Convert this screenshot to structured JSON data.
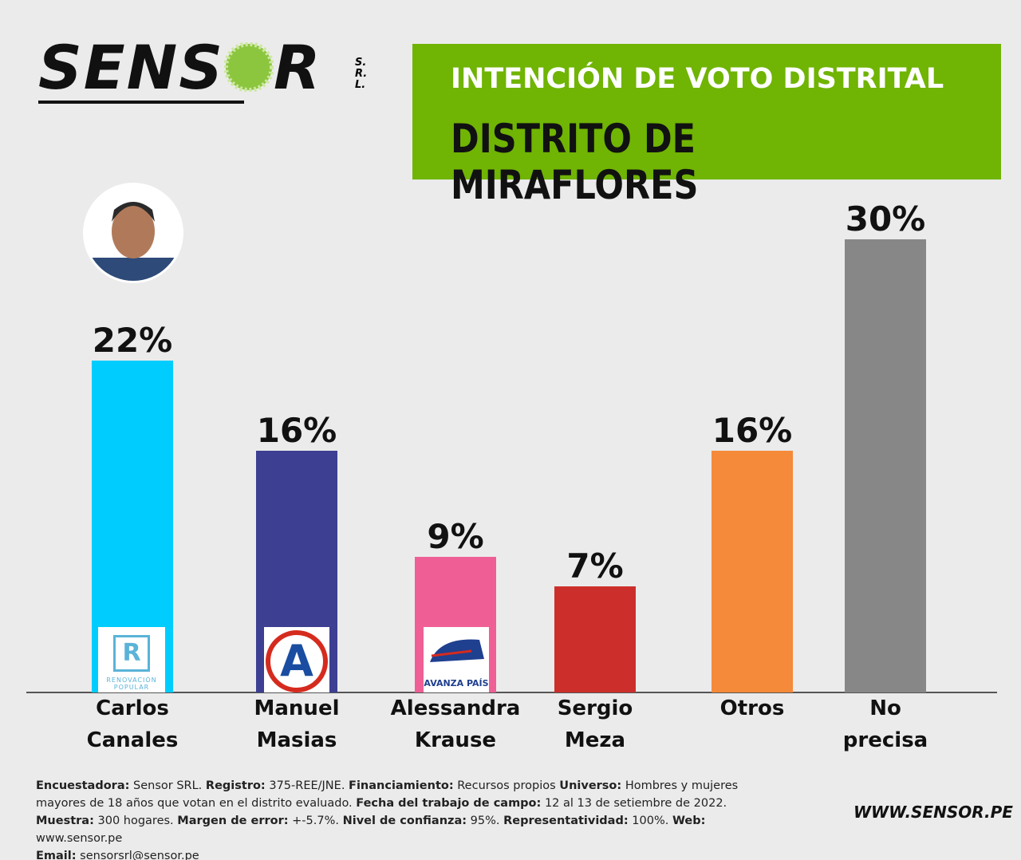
{
  "brand": {
    "name_left": "SENS",
    "name_right": "R",
    "suffix": "S.R.L."
  },
  "chart_data": {
    "type": "bar",
    "title": "INTENCIÓN DE VOTO DISTRITAL",
    "subtitle": "DISTRITO DE MIRAFLORES",
    "categories": [
      "Carlos Canales",
      "Manuel Masias",
      "Alessandra Krause",
      "Sergio Meza",
      "Otros",
      "No precisa"
    ],
    "values": [
      22,
      16,
      9,
      7,
      16,
      30
    ],
    "value_labels": [
      "22%",
      "16%",
      "9%",
      "7%",
      "16%",
      "30%"
    ],
    "colors": [
      "#00cdfd",
      "#3c3f92",
      "#ef5f96",
      "#cc2f2b",
      "#f58a3a",
      "#878787"
    ]
  },
  "party_logos": {
    "renovacion_letter": "R",
    "renovacion_name": "RENOVACIÓN POPULAR",
    "masias_letter": "A",
    "avanza_name": "AVANZA PAÍS"
  },
  "footer": [
    {
      "label": "Encuestadora:",
      "text": "Sensor SRL."
    },
    {
      "label": "Registro:",
      "text": "375-REE/JNE."
    },
    {
      "label": "Financiamiento:",
      "text": "Recursos propios"
    },
    {
      "label": "Universo:",
      "text": "Hombres y mujeres mayores de 18 años que votan en el distrito evaluado."
    },
    {
      "label": "Fecha del trabajo de campo:",
      "text": "12 al 13 de setiembre de 2022."
    },
    {
      "label": "Muestra:",
      "text": "300 hogares."
    },
    {
      "label": "Margen de error:",
      "text": "+-5.7%."
    },
    {
      "label": "Nivel de confianza:",
      "text": "95%."
    },
    {
      "label": "Representatividad:",
      "text": "100%."
    },
    {
      "label": "Web:",
      "text": "www.sensor.pe"
    },
    {
      "label": "Email:",
      "text": "sensorsrl@sensor.pe"
    }
  ],
  "website": "WWW.SENSOR.PE"
}
